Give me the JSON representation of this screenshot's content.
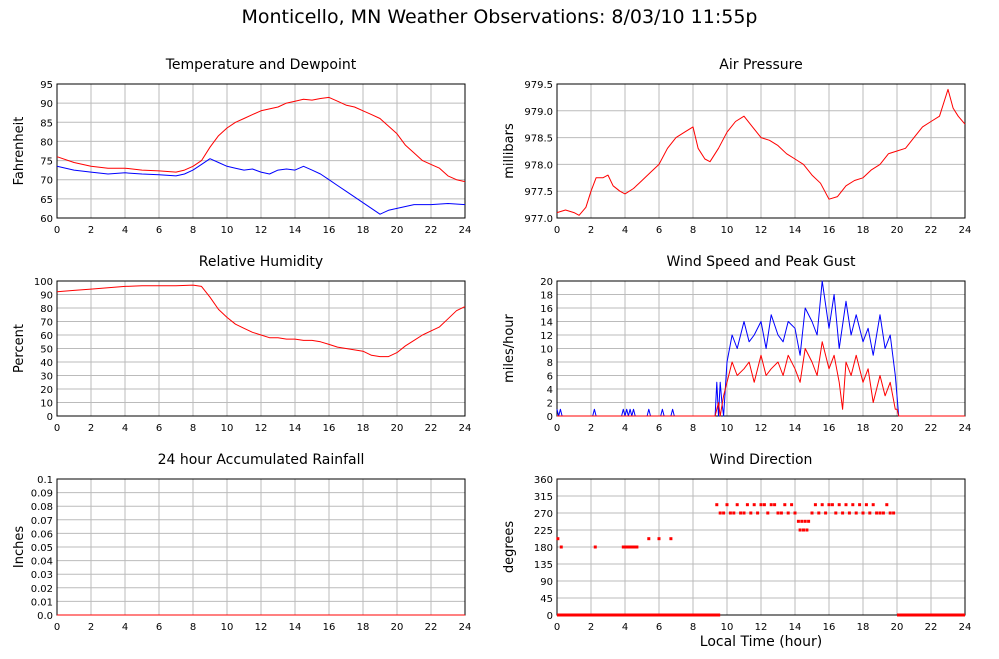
{
  "title": "Monticello, MN Weather Observations: 8/03/10 11:55p",
  "xlabel": "Local Time (hour)",
  "colors": {
    "red": "#ff0000",
    "blue": "#0000ff",
    "grid": "#bbbbbb"
  },
  "chart_data": [
    {
      "type": "line",
      "title": "Temperature and Dewpoint",
      "ylabel": "Fahrenheit",
      "xlim": [
        0,
        24
      ],
      "ylim": [
        60,
        95
      ],
      "xticks": [
        0,
        2,
        4,
        6,
        8,
        10,
        12,
        14,
        16,
        18,
        20,
        22,
        24
      ],
      "yticks": [
        60,
        65,
        70,
        75,
        80,
        85,
        90,
        95
      ],
      "grid": true,
      "series": [
        {
          "color": "#ff0000",
          "x": [
            0,
            1,
            2,
            3,
            4,
            5,
            6,
            7,
            7.5,
            8,
            8.5,
            9,
            9.5,
            10,
            10.5,
            11,
            11.5,
            12,
            12.5,
            13,
            13.5,
            14,
            14.5,
            15,
            15.5,
            16,
            16.5,
            17,
            17.5,
            18,
            18.5,
            19,
            19.5,
            20,
            20.5,
            21,
            21.5,
            22,
            22.5,
            23,
            23.5,
            24
          ],
          "y": [
            76,
            74.5,
            73.5,
            73,
            73,
            72.5,
            72.3,
            72,
            72.5,
            73.5,
            75,
            78.5,
            81.5,
            83.5,
            85,
            86,
            87,
            88,
            88.5,
            89,
            90,
            90.5,
            91,
            90.8,
            91.2,
            91.5,
            90.5,
            89.5,
            89,
            88,
            87,
            86,
            84,
            82,
            79,
            77,
            75,
            74,
            73,
            71,
            70,
            69.5
          ]
        },
        {
          "color": "#0000ff",
          "x": [
            0,
            1,
            2,
            3,
            4,
            5,
            6,
            7,
            7.5,
            8,
            8.5,
            9,
            9.5,
            10,
            10.5,
            11,
            11.5,
            12,
            12.5,
            13,
            13.5,
            14,
            14.5,
            15,
            15.5,
            16,
            16.5,
            17,
            17.5,
            18,
            18.5,
            19,
            19.5,
            20,
            20.5,
            21,
            22,
            23,
            24
          ],
          "y": [
            73.5,
            72.5,
            72,
            71.5,
            71.8,
            71.5,
            71.3,
            71,
            71.5,
            72.5,
            74,
            75.5,
            74.5,
            73.5,
            73,
            72.5,
            72.8,
            72,
            71.5,
            72.5,
            72.8,
            72.5,
            73.5,
            72.5,
            71.5,
            70,
            68.5,
            67,
            65.5,
            64,
            62.5,
            61,
            62,
            62.5,
            63,
            63.5,
            63.5,
            63.8,
            63.5
          ]
        }
      ]
    },
    {
      "type": "line",
      "title": "Air Pressure",
      "ylabel": "millibars",
      "xlim": [
        0,
        24
      ],
      "ylim": [
        977.0,
        979.5
      ],
      "xticks": [
        0,
        2,
        4,
        6,
        8,
        10,
        12,
        14,
        16,
        18,
        20,
        22,
        24
      ],
      "yticks": [
        "977.0",
        "977.5",
        "978.0",
        "978.5",
        "979.0",
        "979.5"
      ],
      "grid": true,
      "series": [
        {
          "color": "#ff0000",
          "x": [
            0,
            0.5,
            1,
            1.3,
            1.7,
            2,
            2.3,
            2.7,
            3,
            3.3,
            3.7,
            4,
            4.5,
            5,
            5.5,
            6,
            6.5,
            7,
            7.5,
            8,
            8.3,
            8.7,
            9,
            9.5,
            10,
            10.5,
            11,
            11.5,
            12,
            12.5,
            13,
            13.5,
            14,
            14.5,
            15,
            15.5,
            16,
            16.5,
            17,
            17.5,
            18,
            18.5,
            19,
            19.5,
            20,
            20.5,
            21,
            21.5,
            22,
            22.5,
            23,
            23.3,
            23.6,
            24
          ],
          "y": [
            977.1,
            977.15,
            977.1,
            977.05,
            977.2,
            977.5,
            977.75,
            977.75,
            977.8,
            977.6,
            977.5,
            977.45,
            977.55,
            977.7,
            977.85,
            978.0,
            978.3,
            978.5,
            978.6,
            978.7,
            978.3,
            978.1,
            978.05,
            978.3,
            978.6,
            978.8,
            978.9,
            978.7,
            978.5,
            978.45,
            978.35,
            978.2,
            978.1,
            978.0,
            977.8,
            977.65,
            977.35,
            977.4,
            977.6,
            977.7,
            977.75,
            977.9,
            978.0,
            978.2,
            978.25,
            978.3,
            978.5,
            978.7,
            978.8,
            978.9,
            979.4,
            979.05,
            978.9,
            978.75
          ]
        }
      ]
    },
    {
      "type": "line",
      "title": "Relative Humidity",
      "ylabel": "Percent",
      "xlim": [
        0,
        24
      ],
      "ylim": [
        0,
        100
      ],
      "xticks": [
        0,
        2,
        4,
        6,
        8,
        10,
        12,
        14,
        16,
        18,
        20,
        22,
        24
      ],
      "yticks": [
        0,
        10,
        20,
        30,
        40,
        50,
        60,
        70,
        80,
        90,
        100
      ],
      "grid": true,
      "series": [
        {
          "color": "#ff0000",
          "x": [
            0,
            1,
            2,
            3,
            4,
            5,
            6,
            7,
            8,
            8.5,
            9,
            9.5,
            10,
            10.5,
            11,
            11.5,
            12,
            12.5,
            13,
            13.5,
            14,
            14.5,
            15,
            15.5,
            16,
            16.5,
            17,
            17.5,
            18,
            18.5,
            19,
            19.5,
            20,
            20.5,
            21,
            21.5,
            22,
            22.5,
            23,
            23.5,
            24
          ],
          "y": [
            92,
            93,
            94,
            95,
            96,
            96.5,
            96.5,
            96.5,
            97,
            96,
            88,
            79,
            73,
            68,
            65,
            62,
            60,
            58,
            58,
            57,
            57,
            56,
            56,
            55,
            53,
            51,
            50,
            49,
            48,
            45,
            44,
            44,
            47,
            52,
            56,
            60,
            63,
            66,
            72,
            78,
            81
          ]
        }
      ]
    },
    {
      "type": "line",
      "title": "Wind Speed and Peak Gust",
      "ylabel": "miles/hour",
      "xlim": [
        0,
        24
      ],
      "ylim": [
        0,
        20
      ],
      "xticks": [
        0,
        2,
        4,
        6,
        8,
        10,
        12,
        14,
        16,
        18,
        20,
        22,
        24
      ],
      "yticks": [
        0,
        2,
        4,
        6,
        8,
        10,
        12,
        14,
        16,
        18,
        20
      ],
      "grid": true,
      "series": [
        {
          "color": "#0000ff",
          "x": [
            0,
            0.1,
            0.2,
            0.3,
            0.4,
            2.1,
            2.2,
            2.3,
            3.8,
            3.9,
            4.0,
            4.1,
            4.2,
            4.3,
            4.4,
            4.5,
            4.6,
            4.7,
            5.3,
            5.4,
            5.5,
            6.1,
            6.2,
            6.3,
            6.7,
            6.8,
            6.9,
            9.3,
            9.4,
            9.5,
            9.6,
            9.7,
            9.8,
            10,
            10.3,
            10.6,
            11,
            11.3,
            11.6,
            12,
            12.3,
            12.6,
            13,
            13.3,
            13.6,
            14,
            14.3,
            14.6,
            15,
            15.3,
            15.6,
            16,
            16.3,
            16.6,
            17,
            17.3,
            17.6,
            18,
            18.3,
            18.6,
            19,
            19.3,
            19.6,
            19.9,
            20,
            20.1,
            24
          ],
          "y": [
            1,
            0,
            1,
            0,
            0,
            0,
            1,
            0,
            0,
            1,
            0,
            1,
            0,
            1,
            0,
            1,
            0,
            0,
            0,
            1,
            0,
            0,
            1,
            0,
            0,
            1,
            0,
            0,
            5,
            0,
            5,
            2,
            0,
            8,
            12,
            10,
            14,
            11,
            12,
            14,
            10,
            15,
            12,
            11,
            14,
            13,
            9,
            16,
            14,
            12,
            20,
            13,
            18,
            10,
            17,
            12,
            15,
            11,
            13,
            9,
            15,
            10,
            12,
            6,
            3,
            0,
            0
          ]
        },
        {
          "color": "#ff0000",
          "x": [
            0,
            9.3,
            9.5,
            9.6,
            9.8,
            10,
            10.3,
            10.6,
            11,
            11.3,
            11.6,
            12,
            12.3,
            12.6,
            13,
            13.3,
            13.6,
            14,
            14.3,
            14.6,
            15,
            15.3,
            15.6,
            16,
            16.3,
            16.6,
            16.8,
            17,
            17.3,
            17.6,
            18,
            18.3,
            18.6,
            19,
            19.3,
            19.6,
            19.9,
            20,
            20.1,
            24
          ],
          "y": [
            0,
            0,
            2,
            0,
            3,
            5,
            8,
            6,
            7,
            8,
            5,
            9,
            6,
            7,
            8,
            6,
            9,
            7,
            5,
            10,
            8,
            6,
            11,
            7,
            9,
            5,
            1,
            8,
            6,
            9,
            5,
            7,
            2,
            6,
            3,
            5,
            1,
            1,
            0,
            0
          ]
        }
      ]
    },
    {
      "type": "line",
      "title": "24 hour Accumulated Rainfall",
      "ylabel": "Inches",
      "xlim": [
        0,
        24
      ],
      "ylim": [
        0,
        0.1
      ],
      "xticks": [
        0,
        2,
        4,
        6,
        8,
        10,
        12,
        14,
        16,
        18,
        20,
        22,
        24
      ],
      "yticks": [
        "0.0",
        "0.01",
        "0.02",
        "0.03",
        "0.04",
        "0.05",
        "0.06",
        "0.07",
        "0.08",
        "0.09",
        "0.1"
      ],
      "grid": true,
      "series": [
        {
          "color": "#ff0000",
          "x": [
            0,
            24
          ],
          "y": [
            0,
            0
          ]
        }
      ]
    },
    {
      "type": "scatter",
      "title": "Wind Direction",
      "ylabel": "degrees",
      "xlim": [
        0,
        24
      ],
      "ylim": [
        0,
        360
      ],
      "xticks": [
        0,
        2,
        4,
        6,
        8,
        10,
        12,
        14,
        16,
        18,
        20,
        22,
        24
      ],
      "yticks": [
        0,
        45,
        90,
        135,
        180,
        225,
        270,
        315,
        360
      ],
      "grid": true,
      "series": [
        {
          "color": "#ff0000",
          "x": [
            0.05,
            0.25,
            2.25,
            3.9,
            4.0,
            4.1,
            4.2,
            4.3,
            4.4,
            4.5,
            4.6,
            4.7,
            5.4,
            6.0,
            6.7,
            9.4,
            9.6,
            9.8,
            10.0,
            10.2,
            10.4,
            10.6,
            10.8,
            11.0,
            11.2,
            11.4,
            11.6,
            11.8,
            12.0,
            12.2,
            12.4,
            12.6,
            12.8,
            13.0,
            13.2,
            13.4,
            13.6,
            13.8,
            14.0,
            14.2,
            14.3,
            14.4,
            14.5,
            14.6,
            14.7,
            14.8,
            15.0,
            15.2,
            15.4,
            15.6,
            15.8,
            16.0,
            16.2,
            16.4,
            16.6,
            16.8,
            17.0,
            17.2,
            17.4,
            17.6,
            17.8,
            18.0,
            18.2,
            18.4,
            18.6,
            18.8,
            19.0,
            19.2,
            19.4,
            19.6,
            19.8
          ],
          "y": [
            202,
            180,
            180,
            180,
            180,
            180,
            180,
            180,
            180,
            180,
            180,
            180,
            202,
            202,
            202,
            292,
            270,
            270,
            292,
            270,
            270,
            292,
            270,
            270,
            292,
            270,
            292,
            270,
            292,
            292,
            270,
            292,
            292,
            270,
            270,
            292,
            270,
            292,
            270,
            248,
            225,
            248,
            225,
            248,
            225,
            248,
            270,
            292,
            270,
            292,
            270,
            292,
            292,
            270,
            292,
            270,
            292,
            270,
            292,
            270,
            292,
            270,
            292,
            270,
            292,
            270,
            270,
            270,
            292,
            270,
            270
          ]
        },
        {
          "color": "#ff0000",
          "x": [
            0,
            9.6
          ],
          "y": [
            0,
            0
          ]
        },
        {
          "color": "#ff0000",
          "x": [
            20.0,
            24
          ],
          "y": [
            0,
            0
          ]
        }
      ]
    }
  ]
}
